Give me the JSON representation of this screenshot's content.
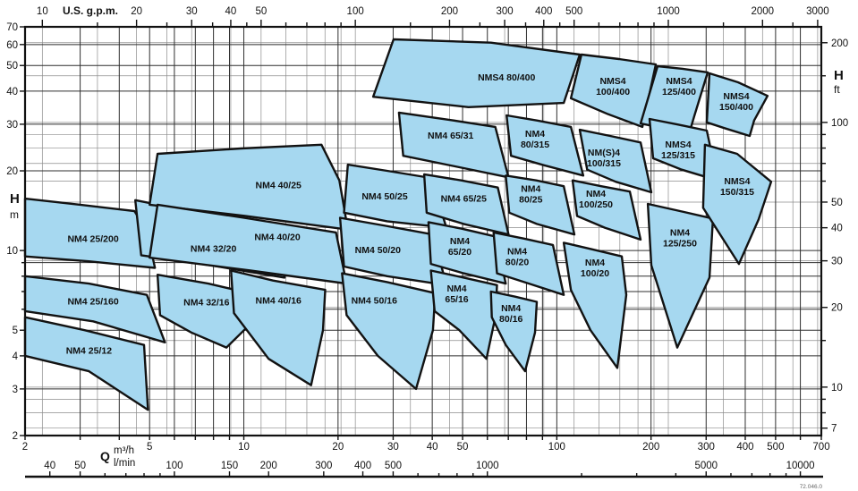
{
  "footer_code": "72.046.0",
  "colors": {
    "region_fill": "#A6D8F0",
    "region_stroke": "#121212",
    "border": "#111111"
  },
  "axes": {
    "top": {
      "unit": "U.S. g.p.m.",
      "major": [
        10,
        20,
        30,
        40,
        50,
        100,
        200,
        300,
        400,
        500,
        1000,
        2000,
        3000
      ],
      "minor": [
        15,
        25,
        35,
        45,
        60,
        70,
        80,
        90,
        150,
        250,
        350,
        450,
        600,
        700,
        800,
        900,
        1500,
        2500
      ],
      "gridlines": [
        10,
        15,
        20,
        25,
        30,
        40,
        50,
        60,
        70,
        80,
        90,
        100,
        150,
        200,
        300,
        400,
        500,
        600,
        700,
        800,
        900,
        1000,
        1500,
        2000,
        2500,
        3000
      ]
    },
    "bottom_m3h": {
      "unit": "m³/h",
      "labels": [
        2,
        5,
        10,
        20,
        30,
        40,
        50,
        100,
        200,
        300,
        400,
        500,
        700
      ],
      "gridlines": [
        2,
        3,
        4,
        5,
        6,
        7,
        8,
        9,
        10,
        20,
        30,
        40,
        50,
        60,
        70,
        80,
        90,
        100,
        200,
        300,
        400,
        500,
        600,
        700
      ],
      "range": [
        2,
        700
      ]
    },
    "bottom_lmin": {
      "unit": "l/min",
      "labels": [
        40,
        50,
        100,
        150,
        200,
        300,
        400,
        500,
        1000,
        5000,
        10000
      ],
      "minor": [
        60,
        70,
        80,
        90,
        600,
        700,
        800,
        900,
        2000,
        3000,
        4000,
        6000,
        7000,
        8000,
        9000
      ]
    },
    "left": {
      "title": "H",
      "unit": "m",
      "labels": [
        70,
        60,
        50,
        40,
        30,
        20,
        10,
        5,
        4,
        3,
        2
      ],
      "minor_ticks": [
        9,
        8,
        7,
        6
      ],
      "gridlines": [
        2,
        3,
        4,
        5,
        6,
        7,
        8,
        9,
        10,
        20,
        30,
        40,
        50,
        60,
        70
      ],
      "range": [
        2,
        70
      ]
    },
    "right": {
      "title": "H",
      "unit": "ft",
      "labels": [
        200,
        100,
        50,
        40,
        30,
        20,
        10,
        7
      ],
      "minor_ticks": [
        150,
        90,
        80,
        70,
        60,
        15,
        9,
        8
      ],
      "gridlines": [
        7,
        8,
        9,
        10,
        15,
        20,
        30,
        40,
        50,
        60,
        70,
        80,
        90,
        100,
        150,
        200
      ]
    },
    "q_label": {
      "title": "Q",
      "line1": "m³/h",
      "line2": "l/min"
    }
  },
  "chart_data": {
    "type": "area",
    "description": "Pump performance envelope chart, log-log scales, Q in m³/h (2-700) vs H in m (2-70)",
    "regions": [
      {
        "model": "NM4 25/200",
        "label_lines": [
          "NM4 25/200"
        ],
        "label_q": 3.3,
        "label_h": 11.1,
        "outline": [
          [
            2,
            15.7
          ],
          [
            3.0,
            14.9
          ],
          [
            4.47,
            14.1
          ],
          [
            4.9,
            11.9
          ],
          [
            5.2,
            8.6
          ],
          [
            3.2,
            9.1
          ],
          [
            2,
            9.5
          ]
        ]
      },
      {
        "model": "NM4 25/160",
        "label_lines": [
          "NM4 25/160"
        ],
        "label_q": 3.3,
        "label_h": 6.45,
        "outline": [
          [
            2,
            8.0
          ],
          [
            3.2,
            7.5
          ],
          [
            4.9,
            6.8
          ],
          [
            5.6,
            4.5
          ],
          [
            3.3,
            5.4
          ],
          [
            2,
            5.9
          ]
        ]
      },
      {
        "model": "NM4 25/12",
        "label_lines": [
          "NM4 25/12"
        ],
        "label_q": 3.2,
        "label_h": 4.2,
        "outline": [
          [
            2,
            5.6
          ],
          [
            3.1,
            5.0
          ],
          [
            4.8,
            4.4
          ],
          [
            4.94,
            2.5
          ],
          [
            3.2,
            3.5
          ],
          [
            2,
            4.0
          ]
        ]
      },
      {
        "model": "NM4 32/20",
        "label_lines": [
          "NM4 32/20"
        ],
        "label_q": 8.0,
        "label_h": 10.2,
        "outline": [
          [
            4.5,
            15.5
          ],
          [
            7.6,
            13.7
          ],
          [
            12.4,
            12.1
          ],
          [
            13.5,
            7.9
          ],
          [
            7.8,
            8.8
          ],
          [
            4.7,
            9.6
          ]
        ]
      },
      {
        "model": "NM4 32/16",
        "label_lines": [
          "NM4 32/16"
        ],
        "label_q": 7.6,
        "label_h": 6.4,
        "outline": [
          [
            5.3,
            8.1
          ],
          [
            7.7,
            7.5
          ],
          [
            11.0,
            6.8
          ],
          [
            10.7,
            5.4
          ],
          [
            8.8,
            4.3
          ],
          [
            6.8,
            4.9
          ],
          [
            5.4,
            5.7
          ]
        ]
      },
      {
        "model": "NM4 40/25",
        "label_lines": [
          "NM4 40/25"
        ],
        "label_q": 12.9,
        "label_h": 17.7,
        "outline": [
          [
            5.3,
            23.2
          ],
          [
            9.8,
            24.3
          ],
          [
            17.7,
            25.1
          ],
          [
            20.2,
            18.4
          ],
          [
            21.5,
            12.0
          ],
          [
            10.1,
            13.5
          ],
          [
            5.0,
            14.9
          ]
        ]
      },
      {
        "model": "NM4 40/20",
        "label_lines": [
          "NM4 40/20"
        ],
        "label_q": 12.8,
        "label_h": 11.3,
        "outline": [
          [
            5.3,
            14.9
          ],
          [
            10.0,
            13.3
          ],
          [
            19.7,
            11.7
          ],
          [
            21.3,
            7.5
          ],
          [
            10.5,
            8.4
          ],
          [
            5.0,
            9.4
          ]
        ]
      },
      {
        "model": "NM4 40/16",
        "label_lines": [
          "NM4 40/16"
        ],
        "label_q": 12.9,
        "label_h": 6.5,
        "outline": [
          [
            9.1,
            8.4
          ],
          [
            12.4,
            7.7
          ],
          [
            18.2,
            7.1
          ],
          [
            17.9,
            5.0
          ],
          [
            16.4,
            3.1
          ],
          [
            12.0,
            3.9
          ],
          [
            9.3,
            5.8
          ]
        ]
      },
      {
        "model": "NM4 50/25",
        "label_lines": [
          "NM4 50/25"
        ],
        "label_q": 28.2,
        "label_h": 16.1,
        "outline": [
          [
            21.5,
            21.1
          ],
          [
            28.7,
            20.0
          ],
          [
            39.6,
            18.8
          ],
          [
            44.4,
            12.2
          ],
          [
            28.7,
            12.9
          ],
          [
            20.9,
            13.9
          ]
        ]
      },
      {
        "model": "NM4 50/20",
        "label_lines": [
          "NM4 50/20"
        ],
        "label_q": 26.8,
        "label_h": 10.1,
        "outline": [
          [
            20.3,
            13.3
          ],
          [
            28.4,
            12.4
          ],
          [
            40.2,
            11.5
          ],
          [
            44.4,
            7.4
          ],
          [
            28.7,
            8.0
          ],
          [
            20.9,
            8.7
          ]
        ]
      },
      {
        "model": "NM4 50/16",
        "label_lines": [
          "NM4 50/16"
        ],
        "label_q": 26.1,
        "label_h": 6.5,
        "outline": [
          [
            20.6,
            8.2
          ],
          [
            28.7,
            7.6
          ],
          [
            40.9,
            6.9
          ],
          [
            40.2,
            5.0
          ],
          [
            35.5,
            3.0
          ],
          [
            26.8,
            4.0
          ],
          [
            21.3,
            5.7
          ]
        ]
      },
      {
        "model": "NM4 65/31",
        "label_lines": [
          "NM4 65/31"
        ],
        "label_q": 45.8,
        "label_h": 27.3,
        "outline": [
          [
            31.3,
            33.2
          ],
          [
            45.2,
            31.2
          ],
          [
            63.6,
            29.3
          ],
          [
            70.1,
            18.9
          ],
          [
            47.3,
            20.8
          ],
          [
            32.3,
            22.8
          ]
        ]
      },
      {
        "model": "NM4 65/25",
        "label_lines": [
          "NM4 65/25"
        ],
        "label_q": 50.4,
        "label_h": 15.8,
        "outline": [
          [
            37.7,
            19.4
          ],
          [
            49.5,
            18.4
          ],
          [
            64.8,
            17.3
          ],
          [
            70.1,
            11.5
          ],
          [
            50.4,
            12.6
          ],
          [
            38.4,
            13.9
          ]
        ]
      },
      {
        "model": "NM4 65/20",
        "label_lines": [
          "NM4",
          "65/20"
        ],
        "label_q": 49.0,
        "label_h": 10.4,
        "outline": [
          [
            38.9,
            12.8
          ],
          [
            49.5,
            12.1
          ],
          [
            63.6,
            11.3
          ],
          [
            68.7,
            7.5
          ],
          [
            50.4,
            8.2
          ],
          [
            39.6,
            8.9
          ]
        ]
      },
      {
        "model": "NM4 65/16",
        "label_lines": [
          "NM4",
          "65/16"
        ],
        "label_q": 47.9,
        "label_h": 6.9,
        "outline": [
          [
            39.6,
            8.4
          ],
          [
            50.4,
            7.9
          ],
          [
            64.4,
            7.4
          ],
          [
            63.6,
            5.6
          ],
          [
            59.6,
            3.9
          ],
          [
            48.8,
            5.0
          ],
          [
            40.7,
            5.9
          ]
        ]
      },
      {
        "model": "NMS4 80/400",
        "label_lines": [
          "NMS4 80/400"
        ],
        "label_q": 69.1,
        "label_h": 45.3,
        "outline": [
          [
            30.1,
            62.8
          ],
          [
            61.6,
            61.0
          ],
          [
            118.4,
            55.0
          ],
          [
            105.2,
            36.1
          ],
          [
            52.2,
            34.8
          ],
          [
            25.9,
            38.1
          ]
        ]
      },
      {
        "model": "NM4 80/315",
        "label_lines": [
          "NM4",
          "80/315"
        ],
        "label_q": 85.2,
        "label_h": 26.5,
        "outline": [
          [
            69.1,
            32.4
          ],
          [
            86.3,
            31.0
          ],
          [
            110.9,
            29.3
          ],
          [
            121.5,
            19.2
          ],
          [
            91.1,
            21.0
          ],
          [
            71.4,
            22.8
          ]
        ]
      },
      {
        "model": "NM4 80/25",
        "label_lines": [
          "NM4",
          "80/25"
        ],
        "label_q": 82.6,
        "label_h": 16.4,
        "outline": [
          [
            68.7,
            19.2
          ],
          [
            85.9,
            18.4
          ],
          [
            105.2,
            17.5
          ],
          [
            113.8,
            11.5
          ],
          [
            86.3,
            12.6
          ],
          [
            70.5,
            13.9
          ]
        ]
      },
      {
        "model": "NM4 80/20",
        "label_lines": [
          "NM4",
          "80/20"
        ],
        "label_q": 74.7,
        "label_h": 9.5,
        "outline": [
          [
            62.8,
            11.7
          ],
          [
            78.3,
            11.1
          ],
          [
            97.2,
            10.5
          ],
          [
            105.2,
            6.8
          ],
          [
            81.5,
            7.5
          ],
          [
            64.4,
            8.2
          ]
        ]
      },
      {
        "model": "NM4 80/16",
        "label_lines": [
          "NM4",
          "80/16"
        ],
        "label_q": 71.4,
        "label_h": 5.8,
        "outline": [
          [
            61.6,
            7.0
          ],
          [
            73.3,
            6.7
          ],
          [
            86.3,
            6.4
          ],
          [
            85.2,
            4.9
          ],
          [
            79.2,
            3.5
          ],
          [
            68.7,
            4.4
          ],
          [
            62.0,
            5.6
          ]
        ]
      },
      {
        "model": "NMS4 100/400",
        "label_lines": [
          "NMS4",
          "100/400"
        ],
        "label_q": 151.1,
        "label_h": 41.9,
        "outline": [
          [
            119.9,
            55.0
          ],
          [
            158.1,
            52.9
          ],
          [
            207.1,
            50.5
          ],
          [
            187.7,
            29.3
          ],
          [
            146.1,
            32.7
          ],
          [
            110.9,
            37.6
          ]
        ]
      },
      {
        "model": "NM(S)4 100/315",
        "label_lines": [
          "NM(S)4",
          "100/315"
        ],
        "label_q": 141.4,
        "label_h": 22.5,
        "outline": [
          [
            118.4,
            28.6
          ],
          [
            148.1,
            27.1
          ],
          [
            185.2,
            25.6
          ],
          [
            200.4,
            16.6
          ],
          [
            154.1,
            18.2
          ],
          [
            125.0,
            20.2
          ]
        ]
      },
      {
        "model": "NM4 100/250",
        "label_lines": [
          "NM4",
          "100/250"
        ],
        "label_q": 133.3,
        "label_h": 15.7,
        "outline": [
          [
            112.3,
            18.4
          ],
          [
            138.6,
            17.5
          ],
          [
            171.1,
            16.7
          ],
          [
            185.2,
            11.0
          ],
          [
            142.3,
            12.2
          ],
          [
            116.1,
            13.5
          ]
        ]
      },
      {
        "model": "NM4 100/20",
        "label_lines": [
          "NM4",
          "100/20"
        ],
        "label_q": 132.4,
        "label_h": 8.65,
        "outline": [
          [
            105.2,
            10.7
          ],
          [
            129.8,
            10.1
          ],
          [
            161.3,
            9.5
          ],
          [
            166.7,
            6.8
          ],
          [
            156.1,
            3.6
          ],
          [
            128.1,
            5.0
          ],
          [
            110.9,
            7.1
          ]
        ]
      },
      {
        "model": "NMS4 125/400",
        "label_lines": [
          "NMS4",
          "125/400"
        ],
        "label_q": 245.8,
        "label_h": 41.9,
        "outline": [
          [
            209.9,
            49.7
          ],
          [
            252.4,
            48.6
          ],
          [
            303.4,
            47.1
          ],
          [
            274.9,
            32.2
          ],
          [
            264.2,
            27.5
          ],
          [
            219.8,
            29.0
          ],
          [
            185.2,
            30.2
          ]
        ]
      },
      {
        "model": "NMS4 125/315",
        "label_lines": [
          "NMS4",
          "125/315"
        ],
        "label_q": 244.2,
        "label_h": 24.1,
        "outline": [
          [
            197.8,
            31.4
          ],
          [
            244.2,
            29.9
          ],
          [
            301.4,
            28.4
          ],
          [
            326.1,
            18.4
          ],
          [
            250.7,
            20.2
          ],
          [
            203.1,
            22.3
          ]
        ]
      },
      {
        "model": "NM4 125/250",
        "label_lines": [
          "NM4",
          "125/250"
        ],
        "label_q": 247.4,
        "label_h": 11.2,
        "outline": [
          [
            195.3,
            15.0
          ],
          [
            247.4,
            14.1
          ],
          [
            315.5,
            13.2
          ],
          [
            307.4,
            7.9
          ],
          [
            242.6,
            4.3
          ],
          [
            200.4,
            8.8
          ]
        ]
      },
      {
        "model": "NMS4 150/400",
        "label_lines": [
          "NMS4",
          "150/400"
        ],
        "label_q": 374.5,
        "label_h": 36.7,
        "outline": [
          [
            307.4,
            46.7
          ],
          [
            379.4,
            43.2
          ],
          [
            471.3,
            38.4
          ],
          [
            427.1,
            31.0
          ],
          [
            413.3,
            27.1
          ],
          [
            343.7,
            29.0
          ],
          [
            301.4,
            30.5
          ]
        ]
      },
      {
        "model": "NMS4 150/315",
        "label_lines": [
          "NMS4",
          "150/315"
        ],
        "label_q": 376.9,
        "label_h": 17.5,
        "outline": [
          [
            297.4,
            25.1
          ],
          [
            376.9,
            23.2
          ],
          [
            483.9,
            18.2
          ],
          [
            441.4,
            13.1
          ],
          [
            381.8,
            8.9
          ],
          [
            293.5,
            14.5
          ]
        ]
      }
    ]
  }
}
